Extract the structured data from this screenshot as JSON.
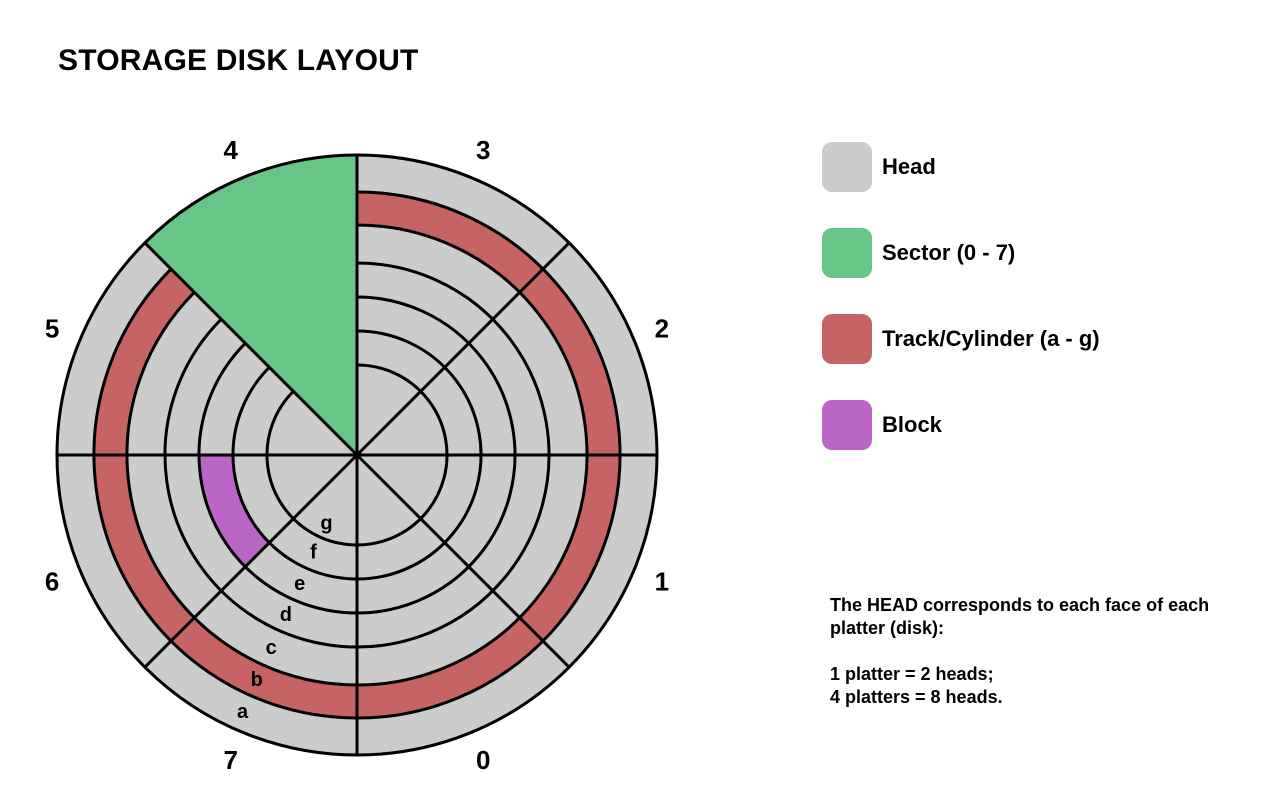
{
  "title": "STORAGE DISK LAYOUT",
  "colors": {
    "head": "#cccccc",
    "sector": "#67c587",
    "track": "#c66464",
    "block": "#bb66c6",
    "line": "#000000"
  },
  "disk": {
    "sector_labels": [
      "0",
      "1",
      "2",
      "3",
      "4",
      "5",
      "6",
      "7"
    ],
    "track_labels": [
      "a",
      "b",
      "c",
      "d",
      "e",
      "f",
      "g"
    ],
    "highlighted_sector": "4",
    "highlighted_track": "b",
    "highlighted_block": {
      "sector": "6",
      "track": "e"
    }
  },
  "legend": [
    {
      "label": "Head",
      "color": "#cccccc",
      "icon": "head-swatch"
    },
    {
      "label": "Sector (0 - 7)",
      "color": "#67c587",
      "icon": "sector-swatch"
    },
    {
      "label": "Track/Cylinder (a - g)",
      "color": "#c66464",
      "icon": "track-swatch"
    },
    {
      "label": "Block",
      "color": "#bb66c6",
      "icon": "block-swatch"
    }
  ],
  "note": {
    "line1": "The HEAD corresponds to each face of each platter (disk):",
    "line2": "1 platter = 2 heads;",
    "line3": "4 platters = 8 heads."
  }
}
